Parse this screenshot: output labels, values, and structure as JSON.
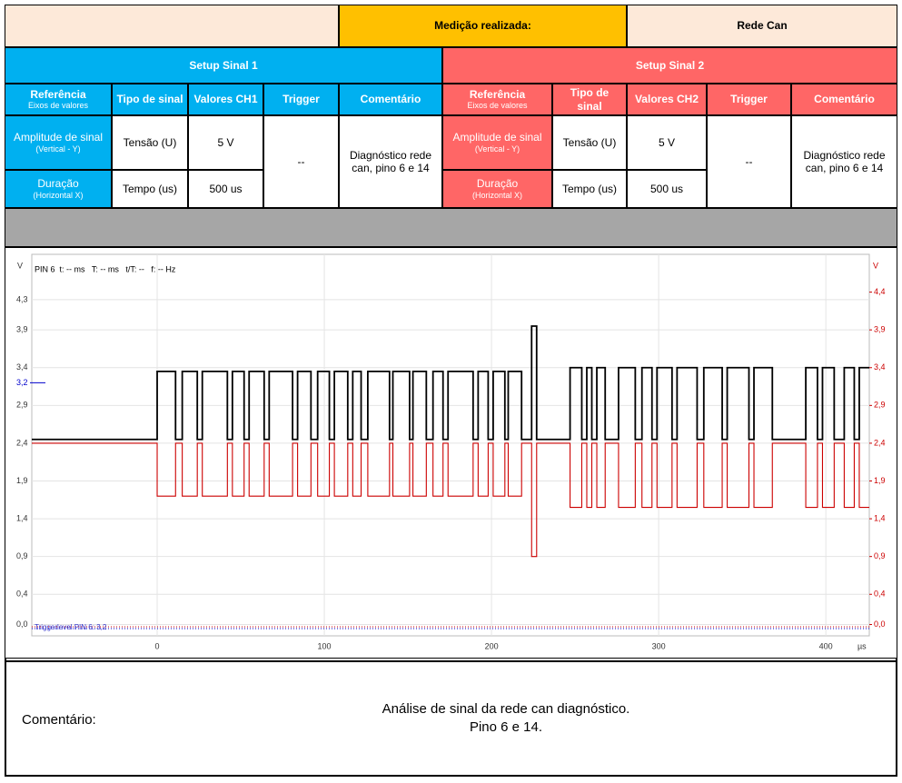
{
  "header": {
    "label": "Medição realizada:",
    "value": "Rede Can"
  },
  "setups": [
    {
      "title": "Setup Sinal 1",
      "columns": [
        "Referência",
        "Tipo de sinal",
        "Valores CH1",
        "Trigger",
        "Comentário"
      ],
      "reference_note": "Eixos de valores",
      "rows": [
        {
          "label": "Amplitude de sinal",
          "axis": "(Vertical - Y)",
          "type": "Tensão (U)",
          "value": "5 V"
        },
        {
          "label": "Duração",
          "axis": "(Horizontal X)",
          "type": "Tempo (us)",
          "value": "500 us"
        }
      ],
      "trigger": "--",
      "comment": "Diagnóstico rede can, pino 6 e 14"
    },
    {
      "title": "Setup Sinal 2",
      "columns": [
        "Referência",
        "Tipo de sinal",
        "Valores CH2",
        "Trigger",
        "Comentário"
      ],
      "reference_note": "Eixos de valores",
      "rows": [
        {
          "label": "Amplitude de sinal",
          "axis": "(Vertical - Y)",
          "type": "Tensão (U)",
          "value": "5 V"
        },
        {
          "label": "Duração",
          "axis": "(Horizontal X)",
          "type": "Tempo (us)",
          "value": "500 us"
        }
      ],
      "trigger": "--",
      "comment": "Diagnóstico rede can, pino 6 e 14"
    }
  ],
  "chart_data": {
    "type": "line",
    "info": "PIN 6  t: -- ms   T: -- ms   t/T: --   f: -- Hz",
    "y_label": "V",
    "y2_label": "V",
    "x_unit": "µs",
    "trigger_level": {
      "value": 3.2,
      "label": "3,2"
    },
    "trigger_text": "Triggerlevel PIN 6: 3,2",
    "xlim": [
      -75,
      426
    ],
    "xticks": [
      0,
      100,
      200,
      300,
      400
    ],
    "ylim": [
      -0.15,
      4.9
    ],
    "yticks": [
      {
        "value": 0,
        "label": "0,0"
      },
      {
        "value": 0.4,
        "label": "0,4"
      },
      {
        "value": 0.9,
        "label": "0,9"
      },
      {
        "value": 1.4,
        "label": "1,4"
      },
      {
        "value": 1.9,
        "label": "1,9"
      },
      {
        "value": 2.4,
        "label": "2,4"
      },
      {
        "value": 2.9,
        "label": "2,9"
      },
      {
        "value": 3.4,
        "label": "3,4"
      },
      {
        "value": 3.9,
        "label": "3,9"
      },
      {
        "value": 4.3,
        "label": "4,3"
      }
    ],
    "y2lim": [
      -0.15,
      4.9
    ],
    "y2ticks": [
      {
        "value": 0,
        "label": "0,0"
      },
      {
        "value": 0.4,
        "label": "0,4"
      },
      {
        "value": 0.9,
        "label": "0,9"
      },
      {
        "value": 1.4,
        "label": "1,4"
      },
      {
        "value": 1.9,
        "label": "1,9"
      },
      {
        "value": 2.4,
        "label": "2,4"
      },
      {
        "value": 2.9,
        "label": "2,9"
      },
      {
        "value": 3.4,
        "label": "3,4"
      },
      {
        "value": 3.9,
        "label": "3,9"
      },
      {
        "value": 4.4,
        "label": "4,4"
      }
    ],
    "grid": true,
    "x": [
      -75,
      0,
      0,
      11,
      11,
      15,
      15,
      24,
      24,
      27,
      27,
      42,
      42,
      45,
      45,
      52,
      52,
      55,
      55,
      64,
      64,
      67,
      67,
      81,
      81,
      84,
      84,
      92,
      92,
      96,
      96,
      103,
      103,
      106,
      106,
      114,
      114,
      117,
      117,
      122,
      122,
      126,
      126,
      139,
      139,
      141,
      141,
      151,
      151,
      153,
      153,
      161,
      161,
      165,
      165,
      171,
      171,
      174,
      174,
      189,
      189,
      192,
      192,
      198,
      198,
      201,
      201,
      208,
      208,
      210,
      210,
      218,
      218,
      224,
      224,
      227,
      227,
      247,
      247,
      254,
      254,
      257,
      257,
      260,
      260,
      263,
      263,
      268,
      268,
      276,
      276,
      286,
      286,
      290,
      290,
      296,
      296,
      299,
      299,
      308,
      308,
      311,
      311,
      323,
      323,
      327,
      327,
      338,
      338,
      341,
      341,
      354,
      354,
      357,
      357,
      368,
      368,
      388,
      388,
      395,
      395,
      398,
      398,
      405,
      405,
      411,
      411,
      417,
      417,
      420,
      420,
      426
    ],
    "series": [
      {
        "color": "#000000",
        "values": [
          2.45,
          2.45,
          3.35,
          3.35,
          2.45,
          2.45,
          3.35,
          3.35,
          2.45,
          2.45,
          3.35,
          3.35,
          2.45,
          2.45,
          3.35,
          3.35,
          2.45,
          2.45,
          3.35,
          3.35,
          2.45,
          2.45,
          3.35,
          3.35,
          2.45,
          2.45,
          3.35,
          3.35,
          2.45,
          2.45,
          3.35,
          3.35,
          2.45,
          2.45,
          3.35,
          3.35,
          2.45,
          2.45,
          3.35,
          3.35,
          2.45,
          2.45,
          3.35,
          3.35,
          2.45,
          2.45,
          3.35,
          3.35,
          2.45,
          2.45,
          3.35,
          3.35,
          2.45,
          2.45,
          3.35,
          3.35,
          2.45,
          2.45,
          3.35,
          3.35,
          2.45,
          2.45,
          3.35,
          3.35,
          2.45,
          2.45,
          3.35,
          3.35,
          2.45,
          2.45,
          3.35,
          3.35,
          2.45,
          2.45,
          3.95,
          3.95,
          2.45,
          2.45,
          3.4,
          3.4,
          2.45,
          2.45,
          3.4,
          3.4,
          2.45,
          2.45,
          3.4,
          3.4,
          2.45,
          2.45,
          3.4,
          3.4,
          2.45,
          2.45,
          3.4,
          3.4,
          2.45,
          2.45,
          3.4,
          3.4,
          2.45,
          2.45,
          3.4,
          3.4,
          2.45,
          2.45,
          3.4,
          3.4,
          2.45,
          2.45,
          3.4,
          3.4,
          2.45,
          2.45,
          3.4,
          3.4,
          2.45,
          2.45,
          3.4,
          3.4,
          2.45,
          2.45,
          3.4,
          3.4,
          2.45,
          2.45,
          3.4,
          3.4,
          2.45,
          2.45,
          3.4,
          3.4
        ]
      },
      {
        "color": "#cc0000",
        "axis": "y2",
        "values": [
          2.4,
          2.4,
          1.7,
          1.7,
          2.4,
          2.4,
          1.7,
          1.7,
          2.4,
          2.4,
          1.7,
          1.7,
          2.4,
          2.4,
          1.7,
          1.7,
          2.4,
          2.4,
          1.7,
          1.7,
          2.4,
          2.4,
          1.7,
          1.7,
          2.4,
          2.4,
          1.7,
          1.7,
          2.4,
          2.4,
          1.7,
          1.7,
          2.4,
          2.4,
          1.7,
          1.7,
          2.4,
          2.4,
          1.7,
          1.7,
          2.4,
          2.4,
          1.7,
          1.7,
          2.4,
          2.4,
          1.7,
          1.7,
          2.4,
          2.4,
          1.7,
          1.7,
          2.4,
          2.4,
          1.7,
          1.7,
          2.4,
          2.4,
          1.7,
          1.7,
          2.4,
          2.4,
          1.7,
          1.7,
          2.4,
          2.4,
          1.7,
          1.7,
          2.4,
          2.4,
          1.7,
          1.7,
          2.4,
          2.4,
          0.9,
          0.9,
          2.4,
          2.4,
          1.55,
          1.55,
          2.4,
          2.4,
          1.55,
          1.55,
          2.4,
          2.4,
          1.55,
          1.55,
          2.4,
          2.4,
          1.55,
          1.55,
          2.4,
          2.4,
          1.55,
          1.55,
          2.4,
          2.4,
          1.55,
          1.55,
          2.4,
          2.4,
          1.55,
          1.55,
          2.4,
          2.4,
          1.55,
          1.55,
          2.4,
          2.4,
          1.55,
          1.55,
          2.4,
          2.4,
          1.55,
          1.55,
          2.4,
          2.4,
          1.55,
          1.55,
          2.4,
          2.4,
          1.55,
          1.55,
          2.4,
          2.4,
          1.55,
          1.55,
          2.4,
          2.4,
          1.55,
          1.55
        ]
      }
    ]
  },
  "comment": {
    "label": "Comentário:",
    "lines": [
      "Análise de sinal da rede can diagnóstico.",
      "Pino 6 e 14."
    ]
  }
}
